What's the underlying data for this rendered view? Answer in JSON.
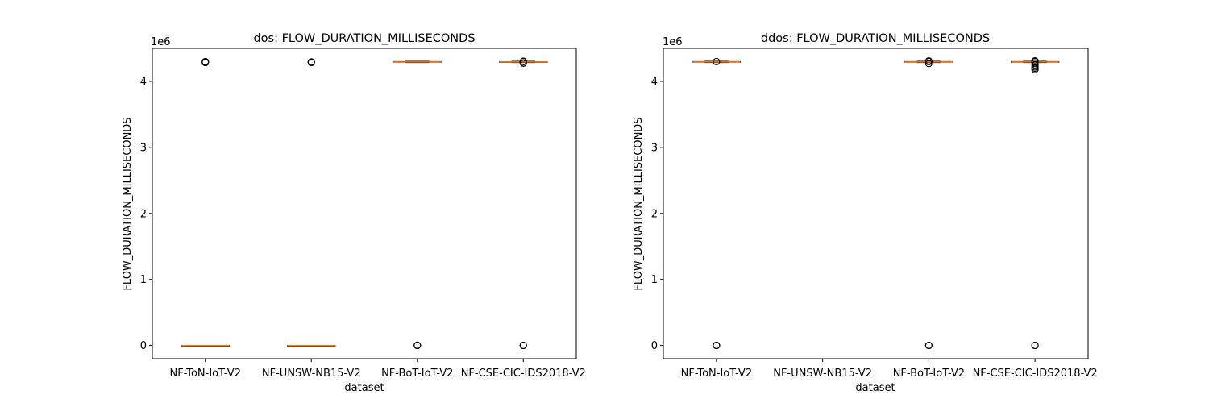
{
  "chart_data": [
    {
      "type": "boxplot",
      "title": "dos: FLOW_DURATION_MILLISECONDS",
      "xlabel": "dataset",
      "ylabel": "FLOW_DURATION_MILLISECONDS",
      "offset_text": "1e6",
      "ylim": [
        -0.2,
        4.5
      ],
      "yscale_factor": 1000000,
      "yticks": [
        0,
        1,
        2,
        3,
        4
      ],
      "ytick_labels": [
        "0",
        "1",
        "2",
        "3",
        "4"
      ],
      "categories": [
        "NF-ToN-IoT-V2",
        "NF-UNSW-NB15-V2",
        "NF-BoT-IoT-V2",
        "NF-CSE-CIC-IDS2018-V2"
      ],
      "boxes": [
        {
          "q1": 0.0,
          "median": 0.0,
          "q3": 0.0,
          "whislo": 0.0,
          "whishi": 0.0,
          "fliers": [
            4.285,
            4.29,
            4.295,
            4.3
          ]
        },
        {
          "q1": 0.0,
          "median": 0.0,
          "q3": 0.0,
          "whislo": 0.0,
          "whishi": 0.0,
          "fliers": [
            4.285,
            4.29,
            4.295
          ]
        },
        {
          "q1": 4.29,
          "median": 4.294,
          "q3": 4.3,
          "whislo": 4.285,
          "whishi": 4.305,
          "fliers": [
            0.0,
            0.002,
            0.004
          ]
        },
        {
          "q1": 4.29,
          "median": 4.294,
          "q3": 4.298,
          "whislo": 4.285,
          "whishi": 4.305,
          "fliers": [
            0.0,
            0.002,
            4.275,
            4.28,
            4.3,
            4.305
          ]
        }
      ]
    },
    {
      "type": "boxplot",
      "title": "ddos: FLOW_DURATION_MILLISECONDS",
      "xlabel": "dataset",
      "ylabel": "FLOW_DURATION_MILLISECONDS",
      "offset_text": "1e6",
      "ylim": [
        -0.2,
        4.5
      ],
      "yscale_factor": 1000000,
      "yticks": [
        0,
        1,
        2,
        3,
        4
      ],
      "ytick_labels": [
        "0",
        "1",
        "2",
        "3",
        "4"
      ],
      "categories": [
        "NF-ToN-IoT-V2",
        "NF-UNSW-NB15-V2",
        "NF-BoT-IoT-V2",
        "NF-CSE-CIC-IDS2018-V2"
      ],
      "boxes": [
        {
          "q1": 4.29,
          "median": 4.294,
          "q3": 4.3,
          "whislo": 4.285,
          "whishi": 4.305,
          "fliers": [
            0.0,
            0.002,
            4.3
          ]
        },
        null,
        {
          "q1": 4.29,
          "median": 4.294,
          "q3": 4.3,
          "whislo": 4.285,
          "whishi": 4.305,
          "fliers": [
            0.0,
            0.002,
            4.27,
            4.3,
            4.31
          ]
        },
        {
          "q1": 4.29,
          "median": 4.294,
          "q3": 4.3,
          "whislo": 4.285,
          "whishi": 4.305,
          "fliers": [
            0.0,
            0.002,
            4.18,
            4.2,
            4.22,
            4.25,
            4.28,
            4.3,
            4.31
          ]
        }
      ]
    }
  ]
}
